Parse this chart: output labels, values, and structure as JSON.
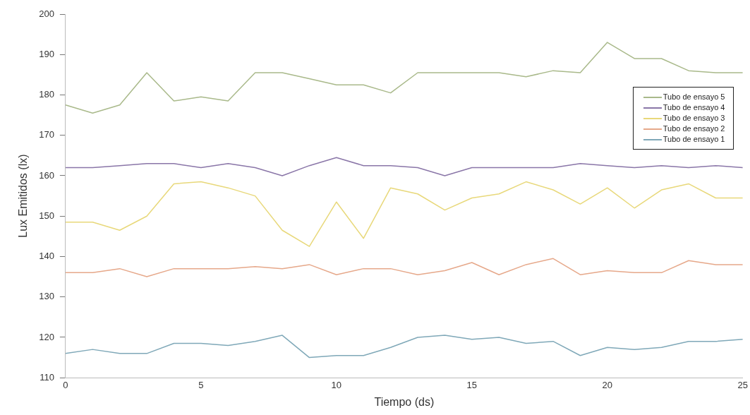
{
  "chart_data": {
    "type": "line",
    "xlabel": "Tiempo (ds)",
    "ylabel": "Lux Emitidos (lx)",
    "x": [
      0,
      1,
      2,
      3,
      4,
      5,
      6,
      7,
      8,
      9,
      10,
      11,
      12,
      13,
      14,
      15,
      16,
      17,
      18,
      19,
      20,
      21,
      22,
      23,
      24,
      25
    ],
    "xlim": [
      0,
      25
    ],
    "xticks": [
      0,
      5,
      10,
      15,
      20,
      25
    ],
    "ylim": [
      110,
      200
    ],
    "yticks": [
      110,
      120,
      130,
      140,
      150,
      160,
      170,
      180,
      190,
      200
    ],
    "grid": false,
    "legend": "right",
    "marker": "none",
    "line_style": "solid",
    "series": [
      {
        "name": "Tubo de ensayo 5",
        "color": "#a9b98a",
        "values": [
          177.5,
          175.5,
          177.5,
          185.5,
          178.5,
          179.5,
          178.5,
          185.5,
          185.5,
          184,
          182.5,
          182.5,
          180.5,
          185.5,
          185.5,
          185.5,
          185.5,
          184.5,
          186,
          185.5,
          193,
          189,
          189,
          186,
          185.5,
          185.5
        ]
      },
      {
        "name": "Tubo de ensayo 4",
        "color": "#8a76a8",
        "values": [
          162,
          162,
          162.5,
          163,
          163,
          162,
          163,
          162,
          160,
          162.5,
          164.5,
          162.5,
          162.5,
          162,
          160,
          162,
          162,
          162,
          162,
          163,
          162.5,
          162,
          162.5,
          162,
          162.5,
          162
        ]
      },
      {
        "name": "Tubo de ensayo 3",
        "color": "#e8d87a",
        "values": [
          148.5,
          148.5,
          146.5,
          150,
          158,
          158.5,
          157,
          155,
          146.5,
          142.5,
          153.5,
          144.5,
          157,
          155.5,
          151.5,
          154.5,
          155.5,
          158.5,
          156.5,
          153,
          157,
          152,
          156.5,
          158,
          154.5,
          154.5
        ]
      },
      {
        "name": "Tubo de ensayo 2",
        "color": "#e6a88a",
        "values": [
          136,
          136,
          137,
          135,
          137,
          137,
          137,
          137.5,
          137,
          138,
          135.5,
          137,
          137,
          135.5,
          136.5,
          138.5,
          135.5,
          138,
          139.5,
          135.5,
          136.5,
          136,
          136,
          139,
          138,
          138
        ]
      },
      {
        "name": "Tubo de ensayo 1",
        "color": "#7fa8b8",
        "values": [
          116,
          117,
          116,
          116,
          118.5,
          118.5,
          118,
          119,
          120.5,
          115,
          115.5,
          115.5,
          117.5,
          120,
          120.5,
          119.5,
          120,
          118.5,
          119,
          115.5,
          117.5,
          117,
          117.5,
          119,
          119,
          119.5
        ]
      }
    ]
  }
}
